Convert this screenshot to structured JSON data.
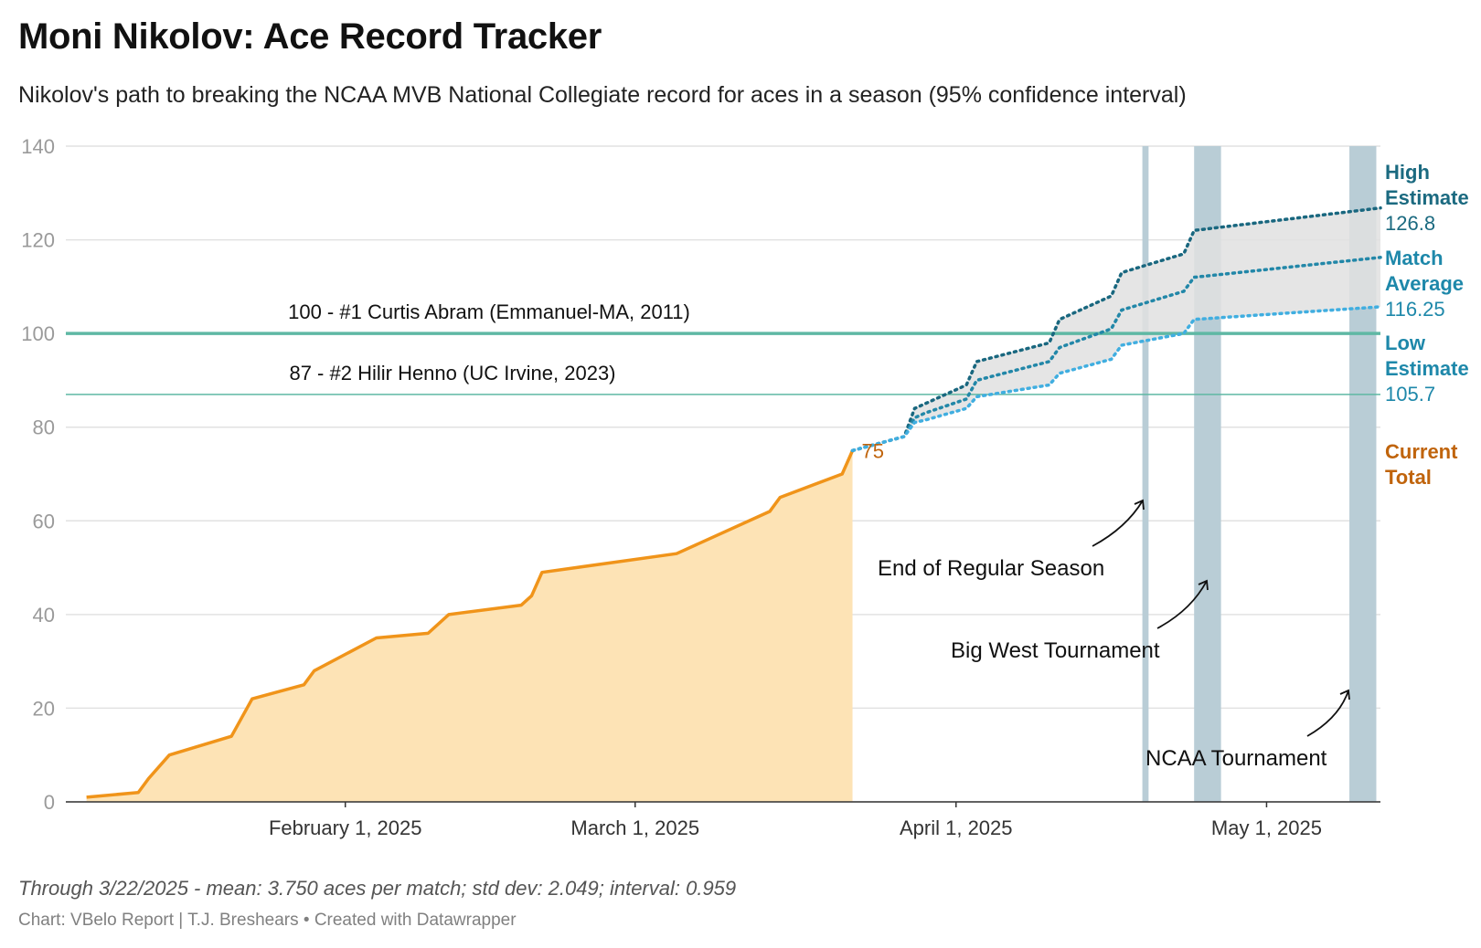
{
  "title": "Moni Nikolov: Ace Record Tracker",
  "subtitle": "Nikolov's path to breaking the NCAA MVB National Collegiate record for aces in a season (95% confidence interval)",
  "notes": "Through 3/22/2025 - mean: 3.750 aces per match; std dev: 2.049; interval: 0.959",
  "credit": "Chart: VBelo Report | T.J. Breshears • Created with Datawrapper",
  "colors": {
    "current": "#f0941a",
    "current_fill": "#fde3b5",
    "high": "#19677f",
    "average": "#2287a8",
    "low": "#40aee0",
    "band_fill": "#e0e0e0",
    "ref_line": "#5fb8a4",
    "tournament_band": "#b9cdd6",
    "current_label": "#c0640c",
    "high_label": "#1b6a80",
    "avg_label": "#1e88aa",
    "low_label": "#1e88aa"
  },
  "chart_data": {
    "type": "area",
    "xlabel": "",
    "ylabel": "",
    "ylim": [
      0,
      140
    ],
    "xlim": [
      "2025-01-05",
      "2025-05-12"
    ],
    "yticks": [
      0,
      20,
      40,
      60,
      80,
      100,
      120,
      140
    ],
    "xticks": [
      {
        "date": "2025-02-01",
        "label": "February 1, 2025"
      },
      {
        "date": "2025-03-01",
        "label": "March 1, 2025"
      },
      {
        "date": "2025-04-01",
        "label": "April 1, 2025"
      },
      {
        "date": "2025-05-01",
        "label": "May 1, 2025"
      }
    ],
    "grid": true,
    "current_total": {
      "name": "Current Total",
      "value_label": "75",
      "points": [
        [
          "2025-01-07",
          1
        ],
        [
          "2025-01-12",
          2
        ],
        [
          "2025-01-13",
          5
        ],
        [
          "2025-01-15",
          10
        ],
        [
          "2025-01-21",
          14
        ],
        [
          "2025-01-23",
          22
        ],
        [
          "2025-01-28",
          25
        ],
        [
          "2025-01-29",
          28
        ],
        [
          "2025-02-04",
          35
        ],
        [
          "2025-02-09",
          36
        ],
        [
          "2025-02-11",
          40
        ],
        [
          "2025-02-18",
          42
        ],
        [
          "2025-02-19",
          44
        ],
        [
          "2025-02-20",
          49
        ],
        [
          "2025-03-05",
          53
        ],
        [
          "2025-03-14",
          62
        ],
        [
          "2025-03-15",
          65
        ],
        [
          "2025-03-21",
          70
        ],
        [
          "2025-03-22",
          75
        ]
      ]
    },
    "projections": [
      {
        "name": "High Estimate",
        "label": "High\nEstimate",
        "value": "126.8",
        "points": [
          [
            "2025-03-22",
            75
          ],
          [
            "2025-03-27",
            78
          ],
          [
            "2025-03-28",
            84
          ],
          [
            "2025-03-29",
            85
          ],
          [
            "2025-04-02",
            89
          ],
          [
            "2025-04-03",
            94
          ],
          [
            "2025-04-10",
            98
          ],
          [
            "2025-04-11",
            103
          ],
          [
            "2025-04-16",
            108
          ],
          [
            "2025-04-17",
            113
          ],
          [
            "2025-04-23",
            117
          ],
          [
            "2025-04-24",
            122
          ],
          [
            "2025-05-12",
            126.8
          ]
        ]
      },
      {
        "name": "Match Average",
        "label": "Match\nAverage",
        "value": "116.25",
        "points": [
          [
            "2025-03-22",
            75
          ],
          [
            "2025-03-27",
            78
          ],
          [
            "2025-03-28",
            82
          ],
          [
            "2025-03-29",
            83
          ],
          [
            "2025-04-02",
            86
          ],
          [
            "2025-04-03",
            90
          ],
          [
            "2025-04-10",
            94
          ],
          [
            "2025-04-11",
            97
          ],
          [
            "2025-04-16",
            101
          ],
          [
            "2025-04-17",
            105
          ],
          [
            "2025-04-23",
            109
          ],
          [
            "2025-04-24",
            112
          ],
          [
            "2025-05-12",
            116.25
          ]
        ]
      },
      {
        "name": "Low Estimate",
        "label": "Low\nEstimate",
        "value": "105.7",
        "points": [
          [
            "2025-03-22",
            75
          ],
          [
            "2025-03-27",
            78
          ],
          [
            "2025-03-28",
            81
          ],
          [
            "2025-03-29",
            81.5
          ],
          [
            "2025-04-02",
            84
          ],
          [
            "2025-04-03",
            86.5
          ],
          [
            "2025-04-10",
            89
          ],
          [
            "2025-04-11",
            91.5
          ],
          [
            "2025-04-16",
            94.5
          ],
          [
            "2025-04-17",
            97.5
          ],
          [
            "2025-04-23",
            100
          ],
          [
            "2025-04-24",
            103
          ],
          [
            "2025-05-12",
            105.7
          ]
        ]
      }
    ],
    "reference_lines": [
      {
        "value": 100,
        "label": "100 - #1 Curtis Abram (Emmanuel-MA, 2011)",
        "weight": "thick"
      },
      {
        "value": 87,
        "label": "87 - #2 Hilir Henno (UC Irvine, 2023)",
        "weight": "thin"
      }
    ],
    "bands": [
      {
        "name": "End of Regular Season",
        "start": "2025-04-19",
        "end": "2025-04-19.6"
      },
      {
        "name": "Big West Tournament",
        "start": "2025-04-24",
        "end": "2025-04-26.6"
      },
      {
        "name": "NCAA Tournament",
        "start": "2025-05-09",
        "end": "2025-05-11.6"
      }
    ],
    "annotations": [
      {
        "text": "End of Regular Season",
        "x": "2025-04-10",
        "y": 51
      },
      {
        "text": "Big West Tournament",
        "x": "2025-04-16",
        "y": 33
      },
      {
        "text": "NCAA Tournament",
        "x": "2025-05-01",
        "y": 10
      }
    ],
    "legend_labels": [
      {
        "series": "High Estimate",
        "label": "High\nEstimate",
        "value": "126.8"
      },
      {
        "series": "Match Average",
        "label": "Match\nAverage",
        "value": "116.25"
      },
      {
        "series": "Low Estimate",
        "label": "Low\nEstimate",
        "value": "105.7"
      },
      {
        "series": "Current Total",
        "label": "Current\nTotal",
        "value": ""
      }
    ]
  }
}
